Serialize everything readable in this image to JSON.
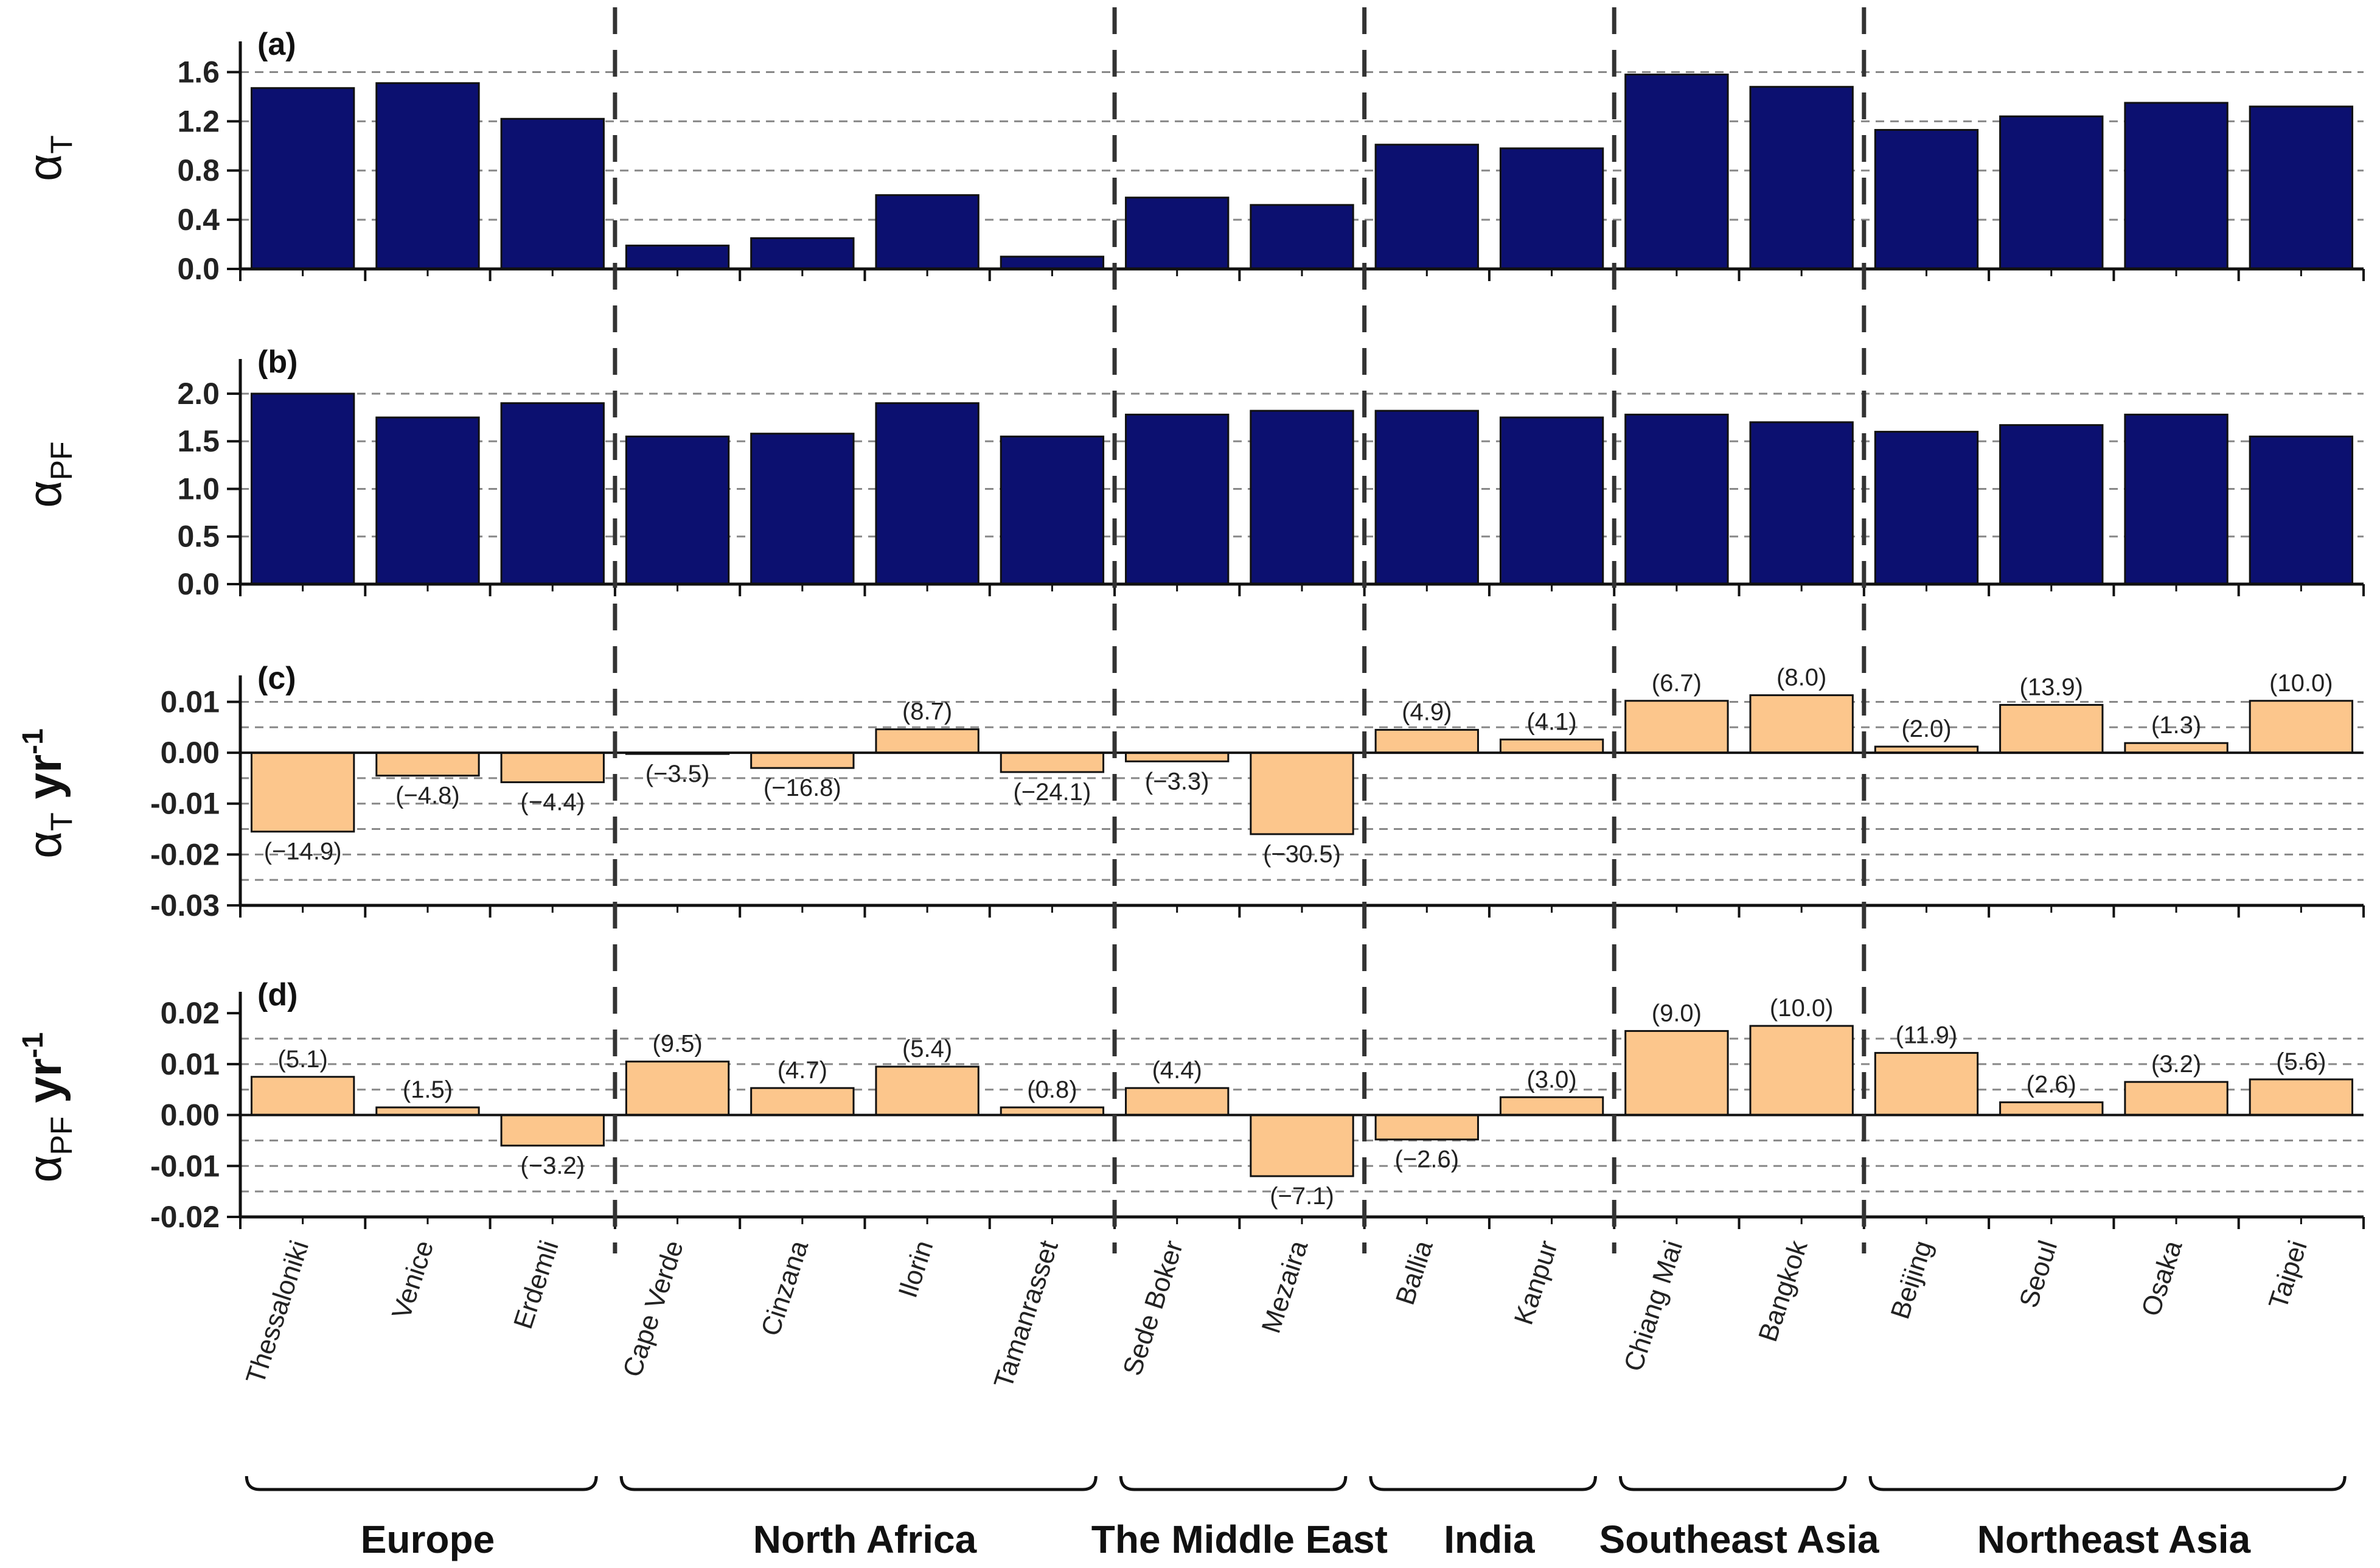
{
  "chart_data": {
    "type": "bar",
    "categories": [
      "Thessaloniki",
      "Venice",
      "Erdemli",
      "Cape Verde",
      "Cinzana",
      "Ilorin",
      "Tamanrasset",
      "Sede Boker",
      "Mezaira",
      "Ballia",
      "Kanpur",
      "Chiang Mai",
      "Bangkok",
      "Beijing",
      "Seoul",
      "Osaka",
      "Taipei"
    ],
    "regions": [
      {
        "name": "Europe",
        "start": 0,
        "end": 2
      },
      {
        "name": "North Africa",
        "start": 3,
        "end": 6
      },
      {
        "name": "The Middle East",
        "start": 7,
        "end": 8
      },
      {
        "name": "India",
        "start": 9,
        "end": 10
      },
      {
        "name": "Southeast Asia",
        "start": 11,
        "end": 12
      },
      {
        "name": "Northeast Asia",
        "start": 13,
        "end": 16
      }
    ],
    "panels": [
      {
        "tag": "(a)",
        "ylabel_main": "α",
        "ylabel_sub": "T",
        "ylabel_suffix": "",
        "ylim": [
          0,
          1.8
        ],
        "ticks": [
          0.0,
          0.4,
          0.8,
          1.2,
          1.6
        ],
        "tick_labels": [
          "0.0",
          "0.4",
          "0.8",
          "1.2",
          "1.6"
        ],
        "grid": [
          0.4,
          0.8,
          1.2,
          1.6
        ],
        "color": "#0c1070",
        "values": [
          1.47,
          1.51,
          1.22,
          0.19,
          0.25,
          0.6,
          0.1,
          0.58,
          0.52,
          1.01,
          0.98,
          1.58,
          1.48,
          1.13,
          1.24,
          1.35,
          1.32
        ],
        "labels": []
      },
      {
        "tag": "(b)",
        "ylabel_main": "α",
        "ylabel_sub": "PF",
        "ylabel_suffix": "",
        "ylim": [
          0,
          2.3
        ],
        "ticks": [
          0.0,
          0.5,
          1.0,
          1.5,
          2.0
        ],
        "tick_labels": [
          "0.0",
          "0.5",
          "1.0",
          "1.5",
          "2.0"
        ],
        "grid": [
          0.5,
          1.0,
          1.5,
          2.0
        ],
        "color": "#0c1070",
        "values": [
          2.0,
          1.75,
          1.9,
          1.55,
          1.58,
          1.9,
          1.55,
          1.78,
          1.82,
          1.82,
          1.75,
          1.78,
          1.7,
          1.6,
          1.67,
          1.78,
          1.55
        ],
        "labels": []
      },
      {
        "tag": "(c)",
        "ylabel_main": "α",
        "ylabel_sub": "T",
        "ylabel_suffix": " yr",
        "ylim": [
          -0.03,
          0.014
        ],
        "ticks": [
          -0.03,
          -0.02,
          -0.01,
          0.0,
          0.01
        ],
        "tick_labels": [
          "-0.03",
          "-0.02",
          "-0.01",
          "0.00",
          "0.01"
        ],
        "grid": [
          -0.025,
          -0.02,
          -0.015,
          -0.01,
          -0.005,
          0.005,
          0.01
        ],
        "color": "#fcc68c",
        "values": [
          -0.0155,
          -0.0045,
          -0.0058,
          -0.0002,
          -0.003,
          0.0046,
          -0.0038,
          -0.0017,
          -0.016,
          0.0045,
          0.0026,
          0.0102,
          0.0113,
          0.0012,
          0.0094,
          0.0019,
          0.0102
        ],
        "labels": [
          "(−14.9)",
          "(−4.8)",
          "(−4.4)",
          "(−3.5)",
          "(−16.8)",
          "(8.7)",
          "(−24.1)",
          "(−3.3)",
          "(−30.5)",
          "(4.9)",
          "(4.1)",
          "(6.7)",
          "(8.0)",
          "(2.0)",
          "(13.9)",
          "(1.3)",
          "(10.0)"
        ]
      },
      {
        "tag": "(d)",
        "ylabel_main": "α",
        "ylabel_sub": "PF",
        "ylabel_suffix": " yr",
        "ylim": [
          -0.02,
          0.023
        ],
        "ticks": [
          -0.02,
          -0.01,
          0.0,
          0.01,
          0.02
        ],
        "tick_labels": [
          "-0.02",
          "-0.01",
          "0.00",
          "0.01",
          "0.02"
        ],
        "grid": [
          -0.015,
          -0.01,
          -0.005,
          0.005,
          0.01,
          0.015
        ],
        "color": "#fcc68c",
        "values": [
          0.0075,
          0.0015,
          -0.006,
          0.0105,
          0.0053,
          0.0095,
          0.0015,
          0.0053,
          -0.012,
          -0.0048,
          0.0035,
          0.0165,
          0.0175,
          0.0122,
          0.0025,
          0.0065,
          0.007
        ],
        "labels": [
          "(5.1)",
          "(1.5)",
          "(−3.2)",
          "(9.5)",
          "(4.7)",
          "(5.4)",
          "(0.8)",
          "(4.4)",
          "(−7.1)",
          "(−2.6)",
          "(3.0)",
          "(9.0)",
          "(10.0)",
          "(11.9)",
          "(2.6)",
          "(3.2)",
          "(5.6)"
        ]
      }
    ]
  }
}
